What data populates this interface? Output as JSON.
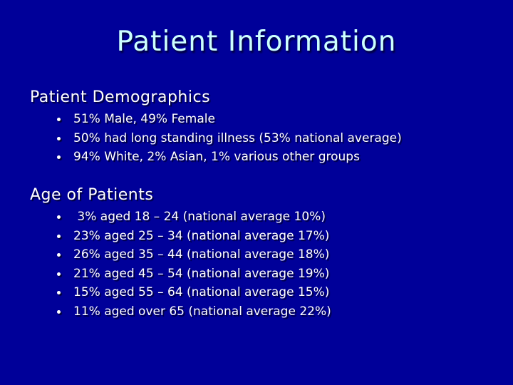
{
  "slide": {
    "title": "Patient Information",
    "colors": {
      "background": "#000099",
      "title_text": "#CCFFFF",
      "body_text": "#FFFFFF"
    },
    "sections": [
      {
        "heading": "Patient Demographics",
        "bullets": [
          "51% Male, 49% Female",
          "50% had long standing illness (53% national average)",
          "94% White, 2% Asian, 1% various other groups"
        ]
      },
      {
        "heading": "Age of Patients",
        "bullets": [
          " 3% aged 18 – 24 (national average 10%)",
          "23% aged 25 – 34 (national average 17%)",
          "26% aged 35 – 44 (national average 18%)",
          "21% aged 45 – 54 (national average 19%)",
          "15% aged 55 – 64 (national average 15%)",
          "11% aged over 65 (national average 22%)"
        ]
      }
    ]
  }
}
